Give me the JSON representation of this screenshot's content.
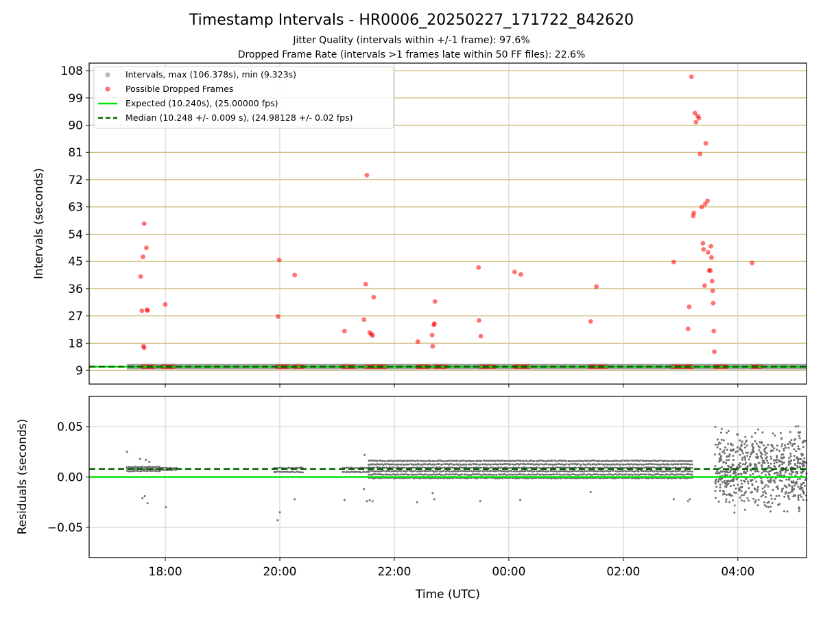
{
  "figure": {
    "title": "Timestamp Intervals - HR0006_20250227_171722_842620",
    "subtitle_line1": "Jitter Quality (intervals within +/-1 frame): 97.6%",
    "subtitle_line2": "Dropped Frame Rate (intervals >1 frames late within 50 FF files): 22.6%",
    "x_label": "Time (UTC)"
  },
  "chart_data": [
    {
      "type": "scatter",
      "panel": "intervals",
      "ylabel": "Intervals (seconds)",
      "xlim_hours": [
        16.67,
        29.2
      ],
      "ylim": [
        4.5,
        110.5
      ],
      "yticks": [
        9,
        18,
        27,
        36,
        45,
        54,
        63,
        72,
        81,
        90,
        99,
        108
      ],
      "xticks": [
        {
          "label": "18:00",
          "hour": 18
        },
        {
          "label": "20:00",
          "hour": 20
        },
        {
          "label": "22:00",
          "hour": 22
        },
        {
          "label": "00:00",
          "hour": 24
        },
        {
          "label": "02:00",
          "hour": 26
        },
        {
          "label": "04:00",
          "hour": 28
        }
      ],
      "grid": true,
      "legend_position": "top-left",
      "legend": [
        {
          "label": "Intervals, max (106.378s), min (9.323s)",
          "kind": "marker",
          "color": "#808080"
        },
        {
          "label": "Possible Dropped Frames",
          "kind": "marker",
          "color": "#ff0000"
        },
        {
          "label": "Expected (10.240s), (25.00000 fps)",
          "kind": "line",
          "color": "#00e600"
        },
        {
          "label": "Median (10.248 +/- 0.009 s), (24.98128 +/- 0.02 fps)",
          "kind": "dashed",
          "color": "#006400"
        }
      ],
      "expected": 10.24,
      "median": 10.248,
      "intervals_band": {
        "start_hour": 17.33,
        "end_hour": 29.2,
        "value": 10.25
      },
      "dropped_clusters": [
        {
          "start": 17.6,
          "end": 17.8,
          "value": 10.25
        },
        {
          "start": 17.95,
          "end": 18.15,
          "value": 10.25
        },
        {
          "start": 19.95,
          "end": 20.15,
          "value": 10.25
        },
        {
          "start": 20.25,
          "end": 20.4,
          "value": 10.25
        },
        {
          "start": 21.1,
          "end": 21.3,
          "value": 10.25
        },
        {
          "start": 21.5,
          "end": 21.85,
          "value": 10.25
        },
        {
          "start": 22.4,
          "end": 22.6,
          "value": 10.25
        },
        {
          "start": 22.7,
          "end": 22.9,
          "value": 10.25
        },
        {
          "start": 23.5,
          "end": 23.75,
          "value": 10.25
        },
        {
          "start": 24.1,
          "end": 24.35,
          "value": 10.25
        },
        {
          "start": 25.4,
          "end": 25.7,
          "value": 10.25
        },
        {
          "start": 26.85,
          "end": 27.05,
          "value": 10.25
        },
        {
          "start": 27.1,
          "end": 27.2,
          "value": 10.25
        },
        {
          "start": 27.6,
          "end": 27.8,
          "value": 10.25
        },
        {
          "start": 28.25,
          "end": 28.4,
          "value": 10.25
        }
      ],
      "dropped_points": [
        {
          "x": 17.57,
          "y": 40.0
        },
        {
          "x": 17.59,
          "y": 28.7
        },
        {
          "x": 17.61,
          "y": 46.5
        },
        {
          "x": 17.63,
          "y": 57.5
        },
        {
          "x": 17.62,
          "y": 17.0
        },
        {
          "x": 17.63,
          "y": 16.5
        },
        {
          "x": 17.67,
          "y": 49.5
        },
        {
          "x": 17.68,
          "y": 29.0
        },
        {
          "x": 17.69,
          "y": 28.8
        },
        {
          "x": 18.0,
          "y": 30.8
        },
        {
          "x": 19.97,
          "y": 26.8
        },
        {
          "x": 19.99,
          "y": 45.5
        },
        {
          "x": 20.26,
          "y": 40.5
        },
        {
          "x": 21.13,
          "y": 22.0
        },
        {
          "x": 21.47,
          "y": 25.8
        },
        {
          "x": 21.5,
          "y": 37.5
        },
        {
          "x": 21.52,
          "y": 73.5
        },
        {
          "x": 21.57,
          "y": 21.5
        },
        {
          "x": 21.6,
          "y": 21.0
        },
        {
          "x": 21.62,
          "y": 20.5
        },
        {
          "x": 21.64,
          "y": 33.2
        },
        {
          "x": 22.41,
          "y": 18.5
        },
        {
          "x": 22.66,
          "y": 20.7
        },
        {
          "x": 22.67,
          "y": 17.0
        },
        {
          "x": 22.69,
          "y": 24.0
        },
        {
          "x": 22.7,
          "y": 24.5
        },
        {
          "x": 22.71,
          "y": 31.8
        },
        {
          "x": 23.47,
          "y": 43.0
        },
        {
          "x": 23.48,
          "y": 25.5
        },
        {
          "x": 23.51,
          "y": 20.3
        },
        {
          "x": 24.1,
          "y": 41.5
        },
        {
          "x": 24.21,
          "y": 40.7
        },
        {
          "x": 25.43,
          "y": 25.2
        },
        {
          "x": 25.53,
          "y": 36.7
        },
        {
          "x": 26.88,
          "y": 44.8
        },
        {
          "x": 27.13,
          "y": 22.7
        },
        {
          "x": 27.15,
          "y": 30.0
        },
        {
          "x": 27.19,
          "y": 106.0
        },
        {
          "x": 27.22,
          "y": 60.0
        },
        {
          "x": 27.23,
          "y": 61.0
        },
        {
          "x": 27.25,
          "y": 94.0
        },
        {
          "x": 27.27,
          "y": 91.0
        },
        {
          "x": 27.3,
          "y": 93.0
        },
        {
          "x": 27.32,
          "y": 92.3
        },
        {
          "x": 27.34,
          "y": 80.5
        },
        {
          "x": 27.37,
          "y": 63.0
        },
        {
          "x": 27.39,
          "y": 51.0
        },
        {
          "x": 27.4,
          "y": 49.0
        },
        {
          "x": 27.42,
          "y": 37.0
        },
        {
          "x": 27.43,
          "y": 64.0
        },
        {
          "x": 27.44,
          "y": 84.0
        },
        {
          "x": 27.47,
          "y": 65.0
        },
        {
          "x": 27.48,
          "y": 48.0
        },
        {
          "x": 27.5,
          "y": 42.0
        },
        {
          "x": 27.52,
          "y": 42.0
        },
        {
          "x": 27.53,
          "y": 50.0
        },
        {
          "x": 27.54,
          "y": 46.3
        },
        {
          "x": 27.55,
          "y": 38.5
        },
        {
          "x": 27.56,
          "y": 35.3
        },
        {
          "x": 27.57,
          "y": 31.2
        },
        {
          "x": 27.58,
          "y": 22.0
        },
        {
          "x": 27.59,
          "y": 15.2
        },
        {
          "x": 28.25,
          "y": 44.5
        }
      ]
    },
    {
      "type": "scatter",
      "panel": "residuals",
      "ylabel": "Residuals (seconds)",
      "xlim_hours": [
        16.67,
        29.2
      ],
      "ylim": [
        -0.08,
        0.08
      ],
      "yticks": [
        {
          "label": "0.05",
          "value": 0.05
        },
        {
          "label": "0.00",
          "value": 0.0
        },
        {
          "label": "−0.05",
          "value": -0.05
        }
      ],
      "grid": true,
      "expected_residual": 0.0,
      "median_residual": 0.008,
      "segments": [
        {
          "start": 17.33,
          "end": 17.9,
          "center": 0.008,
          "spread": 0.002,
          "rows": 3
        },
        {
          "start": 17.9,
          "end": 18.2,
          "center": 0.008,
          "spread": 0.001,
          "rows": 2
        },
        {
          "start": 19.9,
          "end": 20.4,
          "center": 0.007,
          "spread": 0.002,
          "rows": 2
        },
        {
          "start": 21.1,
          "end": 21.55,
          "center": 0.007,
          "spread": 0.002,
          "rows": 2
        },
        {
          "start": 21.55,
          "end": 27.2,
          "center": 0.0075,
          "spread": 0.0085,
          "rows": 6
        },
        {
          "start": 27.6,
          "end": 29.2,
          "center": 0.008,
          "spread": 0.045,
          "rows": 0
        }
      ],
      "outliers": [
        {
          "x": 17.33,
          "y": 0.025
        },
        {
          "x": 17.56,
          "y": 0.018
        },
        {
          "x": 17.6,
          "y": -0.021
        },
        {
          "x": 17.64,
          "y": -0.019
        },
        {
          "x": 17.69,
          "y": -0.026
        },
        {
          "x": 18.01,
          "y": -0.03
        },
        {
          "x": 17.66,
          "y": 0.017
        },
        {
          "x": 17.72,
          "y": 0.015
        },
        {
          "x": 19.96,
          "y": -0.043
        },
        {
          "x": 20.0,
          "y": -0.035
        },
        {
          "x": 20.26,
          "y": -0.022
        },
        {
          "x": 21.13,
          "y": -0.023
        },
        {
          "x": 21.48,
          "y": 0.022
        },
        {
          "x": 21.52,
          "y": -0.024
        },
        {
          "x": 21.57,
          "y": -0.023
        },
        {
          "x": 21.62,
          "y": -0.024
        },
        {
          "x": 21.47,
          "y": -0.012
        },
        {
          "x": 22.4,
          "y": -0.025
        },
        {
          "x": 22.67,
          "y": -0.016
        },
        {
          "x": 22.7,
          "y": -0.022
        },
        {
          "x": 23.5,
          "y": -0.024
        },
        {
          "x": 24.2,
          "y": -0.023
        },
        {
          "x": 25.43,
          "y": -0.015
        },
        {
          "x": 27.13,
          "y": -0.024
        },
        {
          "x": 27.16,
          "y": -0.022
        },
        {
          "x": 26.88,
          "y": -0.022
        }
      ]
    }
  ]
}
